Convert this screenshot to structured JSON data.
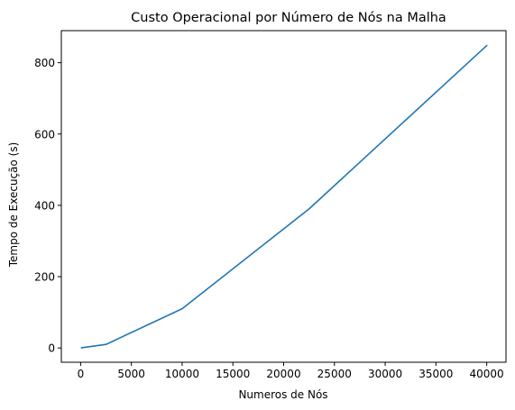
{
  "chart_data": {
    "type": "line",
    "title": "Custo Operacional por Número de Nós na Malha",
    "xlabel": "Numeros de Nós",
    "ylabel": "Tempo de Execução (s)",
    "xlim": [
      -1900,
      41900
    ],
    "ylim": [
      -40,
      890
    ],
    "xticks": [
      0,
      5000,
      10000,
      15000,
      20000,
      25000,
      30000,
      35000,
      40000
    ],
    "xtick_labels": [
      "0",
      "5000",
      "10000",
      "15000",
      "20000",
      "25000",
      "30000",
      "35000",
      "40000"
    ],
    "yticks": [
      0,
      200,
      400,
      600,
      800
    ],
    "ytick_labels": [
      "0",
      "200",
      "400",
      "600",
      "800"
    ],
    "grid": false,
    "legend": "none",
    "series": [
      {
        "color": "#1f77b4",
        "x": [
          100,
          2500,
          10000,
          22500,
          40000
        ],
        "y": [
          0.5,
          10,
          110,
          390,
          848
        ]
      }
    ]
  }
}
